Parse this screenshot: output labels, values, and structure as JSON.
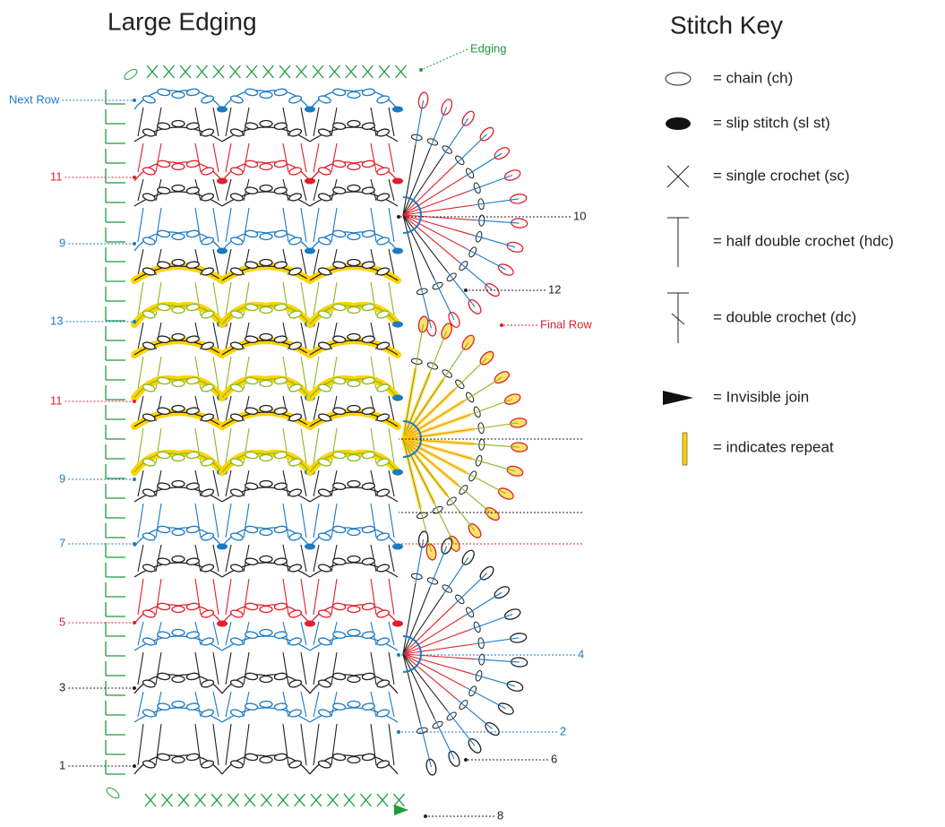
{
  "title": "Large Edging",
  "key_title": "Stitch Key",
  "annotations": [
    "Edging",
    "Next Row",
    "11",
    "9",
    "13",
    "11",
    "9",
    "7",
    "5",
    "3",
    "1",
    "10",
    "12",
    "Final Row",
    "4",
    "2",
    "6",
    "8"
  ],
  "key": [
    "= chain (ch)",
    "= slip stitch (sl st)",
    "= single crochet (sc)",
    "= half double crochet (hdc)",
    "= double crochet (dc)",
    "= Invisible join",
    "= indicates repeat"
  ]
}
